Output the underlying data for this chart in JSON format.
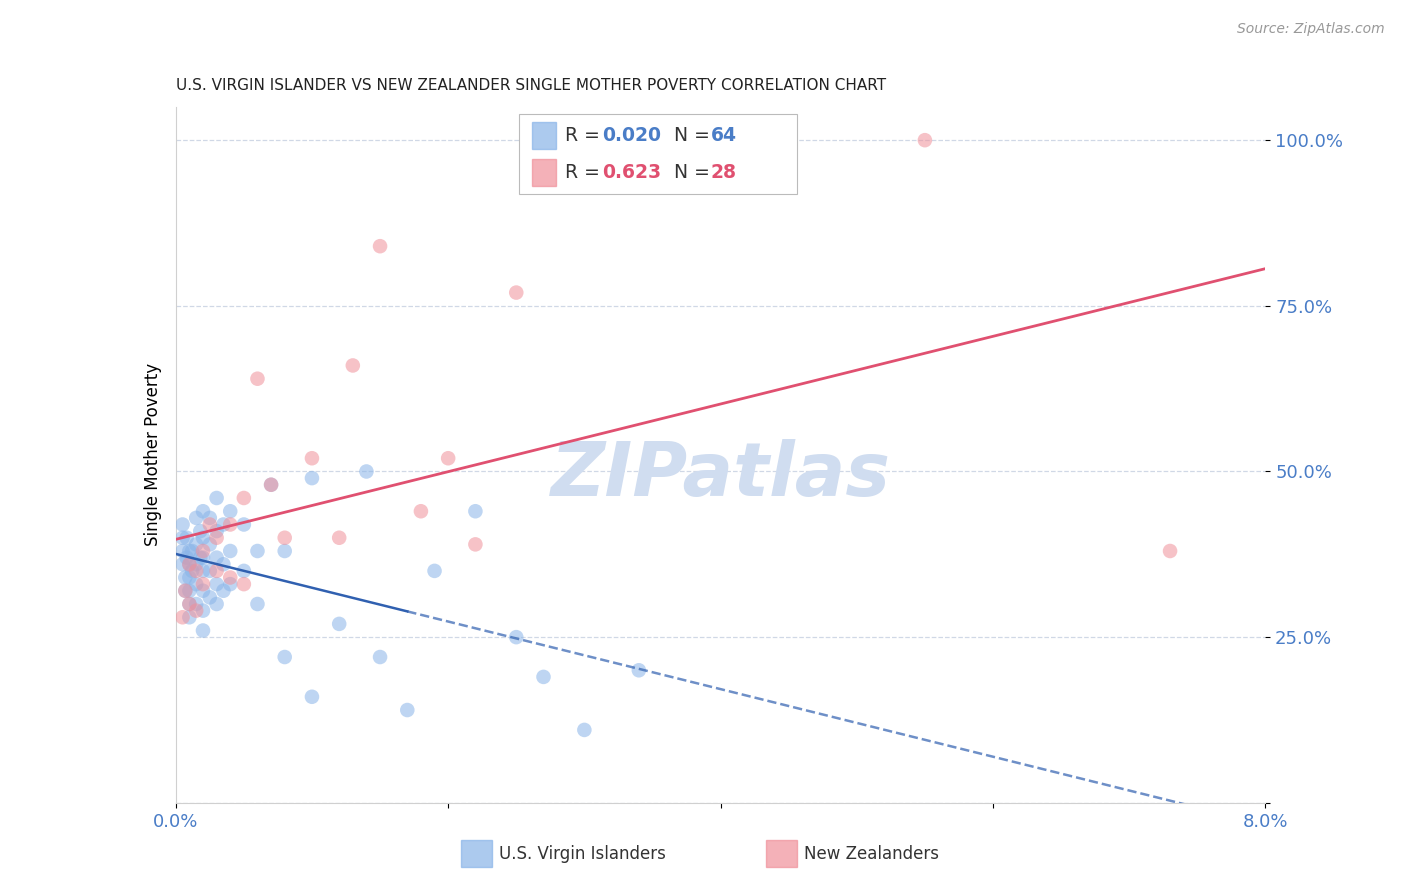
{
  "title": "U.S. VIRGIN ISLANDER VS NEW ZEALANDER SINGLE MOTHER POVERTY CORRELATION CHART",
  "source": "Source: ZipAtlas.com",
  "ylabel": "Single Mother Poverty",
  "xmin": 0.0,
  "xmax": 0.08,
  "ymin": 0.0,
  "ymax": 1.05,
  "blue_color": "#89b4e8",
  "pink_color": "#f0909a",
  "trendline_blue_color": "#3060b0",
  "trendline_pink_color": "#e05070",
  "watermark_color": "#d0ddf0",
  "blue_scatter_x": [
    0.0005,
    0.0005,
    0.0005,
    0.0005,
    0.0007,
    0.0007,
    0.0008,
    0.0008,
    0.001,
    0.001,
    0.001,
    0.001,
    0.001,
    0.001,
    0.0012,
    0.0012,
    0.0015,
    0.0015,
    0.0015,
    0.0015,
    0.0015,
    0.0018,
    0.0018,
    0.002,
    0.002,
    0.002,
    0.002,
    0.002,
    0.002,
    0.002,
    0.0025,
    0.0025,
    0.0025,
    0.0025,
    0.003,
    0.003,
    0.003,
    0.003,
    0.003,
    0.0035,
    0.0035,
    0.0035,
    0.004,
    0.004,
    0.004,
    0.005,
    0.005,
    0.006,
    0.006,
    0.007,
    0.008,
    0.008,
    0.01,
    0.01,
    0.012,
    0.014,
    0.015,
    0.017,
    0.019,
    0.022,
    0.025,
    0.027,
    0.03,
    0.034
  ],
  "blue_scatter_y": [
    0.36,
    0.38,
    0.4,
    0.42,
    0.32,
    0.34,
    0.37,
    0.4,
    0.28,
    0.3,
    0.32,
    0.34,
    0.36,
    0.38,
    0.35,
    0.38,
    0.3,
    0.33,
    0.36,
    0.39,
    0.43,
    0.37,
    0.41,
    0.26,
    0.29,
    0.32,
    0.35,
    0.37,
    0.4,
    0.44,
    0.31,
    0.35,
    0.39,
    0.43,
    0.3,
    0.33,
    0.37,
    0.41,
    0.46,
    0.32,
    0.36,
    0.42,
    0.33,
    0.38,
    0.44,
    0.35,
    0.42,
    0.3,
    0.38,
    0.48,
    0.22,
    0.38,
    0.16,
    0.49,
    0.27,
    0.5,
    0.22,
    0.14,
    0.35,
    0.44,
    0.25,
    0.19,
    0.11,
    0.2
  ],
  "pink_scatter_x": [
    0.0005,
    0.0007,
    0.001,
    0.001,
    0.0015,
    0.0015,
    0.002,
    0.002,
    0.0025,
    0.003,
    0.003,
    0.004,
    0.004,
    0.005,
    0.005,
    0.006,
    0.007,
    0.008,
    0.01,
    0.012,
    0.013,
    0.015,
    0.018,
    0.02,
    0.022,
    0.025,
    0.055,
    0.073
  ],
  "pink_scatter_y": [
    0.28,
    0.32,
    0.3,
    0.36,
    0.29,
    0.35,
    0.33,
    0.38,
    0.42,
    0.35,
    0.4,
    0.34,
    0.42,
    0.33,
    0.46,
    0.64,
    0.48,
    0.4,
    0.52,
    0.4,
    0.66,
    0.84,
    0.44,
    0.52,
    0.39,
    0.77,
    1.0,
    0.38
  ],
  "blue_R": 0.02,
  "pink_R": 0.623,
  "blue_N": 64,
  "pink_N": 28
}
